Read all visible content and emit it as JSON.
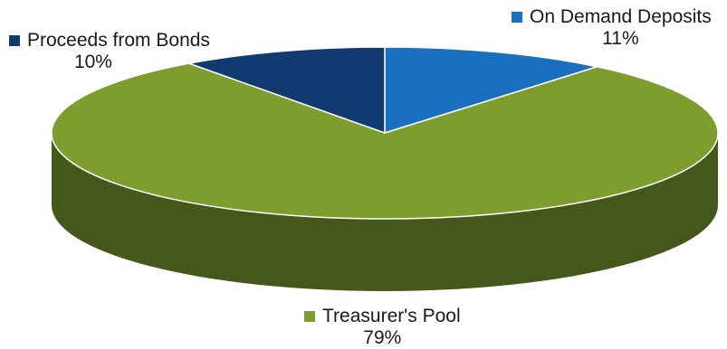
{
  "chart_data": {
    "type": "pie",
    "style": "3d",
    "slices": [
      {
        "label": "On Demand Deposits",
        "percent": "11%",
        "value": 11,
        "color": "#1b6fbf"
      },
      {
        "label": "Treasurer's Pool",
        "percent": "79%",
        "value": 79,
        "color": "#7d9e2f"
      },
      {
        "label": "Proceeds from Bonds",
        "percent": "10%",
        "value": 10,
        "color": "#103a70"
      }
    ]
  }
}
